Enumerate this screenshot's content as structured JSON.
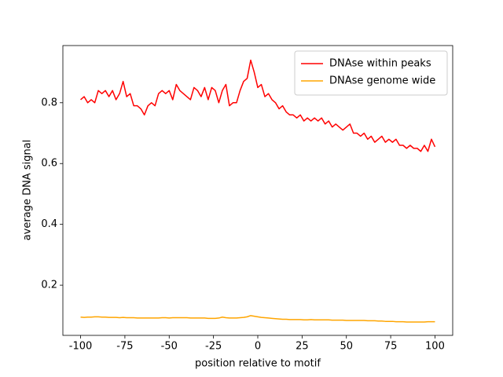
{
  "chart_data": {
    "type": "line",
    "xlabel": "position relative to motif",
    "ylabel": "average DNA signal",
    "x": [
      -100,
      -98,
      -96,
      -94,
      -92,
      -90,
      -88,
      -86,
      -84,
      -82,
      -80,
      -78,
      -76,
      -74,
      -72,
      -70,
      -68,
      -66,
      -64,
      -62,
      -60,
      -58,
      -56,
      -54,
      -52,
      -50,
      -48,
      -46,
      -44,
      -42,
      -40,
      -38,
      -36,
      -34,
      -32,
      -30,
      -28,
      -26,
      -24,
      -22,
      -20,
      -18,
      -16,
      -14,
      -12,
      -10,
      -8,
      -6,
      -4,
      -2,
      0,
      2,
      4,
      6,
      8,
      10,
      12,
      14,
      16,
      18,
      20,
      22,
      24,
      26,
      28,
      30,
      32,
      34,
      36,
      38,
      40,
      42,
      44,
      46,
      48,
      50,
      52,
      54,
      56,
      58,
      60,
      62,
      64,
      66,
      68,
      70,
      72,
      74,
      76,
      78,
      80,
      82,
      84,
      86,
      88,
      90,
      92,
      94,
      96,
      98,
      100
    ],
    "series": [
      {
        "name": "DNAse within peaks",
        "color": "#ff0000",
        "values": [
          0.81,
          0.82,
          0.8,
          0.81,
          0.8,
          0.84,
          0.83,
          0.84,
          0.82,
          0.84,
          0.81,
          0.83,
          0.87,
          0.82,
          0.83,
          0.79,
          0.79,
          0.78,
          0.76,
          0.79,
          0.8,
          0.79,
          0.83,
          0.84,
          0.83,
          0.84,
          0.81,
          0.86,
          0.84,
          0.83,
          0.82,
          0.81,
          0.85,
          0.84,
          0.82,
          0.85,
          0.81,
          0.85,
          0.84,
          0.8,
          0.84,
          0.86,
          0.79,
          0.8,
          0.8,
          0.84,
          0.87,
          0.88,
          0.94,
          0.9,
          0.85,
          0.86,
          0.82,
          0.83,
          0.81,
          0.8,
          0.78,
          0.79,
          0.77,
          0.76,
          0.76,
          0.75,
          0.76,
          0.74,
          0.75,
          0.74,
          0.75,
          0.74,
          0.75,
          0.73,
          0.74,
          0.72,
          0.73,
          0.72,
          0.71,
          0.72,
          0.73,
          0.7,
          0.7,
          0.69,
          0.7,
          0.68,
          0.69,
          0.67,
          0.68,
          0.69,
          0.67,
          0.68,
          0.67,
          0.68,
          0.66,
          0.66,
          0.65,
          0.66,
          0.65,
          0.65,
          0.64,
          0.66,
          0.64,
          0.68,
          0.655
        ]
      },
      {
        "name": "DNAse genome wide",
        "color": "#ffa500",
        "values": [
          0.095,
          0.094,
          0.095,
          0.095,
          0.096,
          0.096,
          0.095,
          0.095,
          0.094,
          0.094,
          0.094,
          0.093,
          0.094,
          0.093,
          0.093,
          0.093,
          0.092,
          0.092,
          0.092,
          0.092,
          0.092,
          0.092,
          0.092,
          0.093,
          0.093,
          0.092,
          0.093,
          0.093,
          0.093,
          0.093,
          0.093,
          0.092,
          0.092,
          0.092,
          0.092,
          0.092,
          0.091,
          0.091,
          0.091,
          0.092,
          0.095,
          0.093,
          0.092,
          0.092,
          0.092,
          0.093,
          0.094,
          0.096,
          0.1,
          0.098,
          0.096,
          0.094,
          0.093,
          0.092,
          0.091,
          0.09,
          0.089,
          0.088,
          0.088,
          0.087,
          0.087,
          0.087,
          0.087,
          0.086,
          0.086,
          0.087,
          0.086,
          0.086,
          0.086,
          0.086,
          0.086,
          0.085,
          0.085,
          0.085,
          0.085,
          0.084,
          0.084,
          0.084,
          0.084,
          0.084,
          0.084,
          0.083,
          0.083,
          0.083,
          0.082,
          0.082,
          0.081,
          0.081,
          0.081,
          0.08,
          0.08,
          0.08,
          0.079,
          0.079,
          0.079,
          0.079,
          0.079,
          0.079,
          0.08,
          0.08,
          0.08
        ]
      }
    ],
    "xlim": [
      -110,
      110
    ],
    "xticks": [
      -100,
      -75,
      -50,
      -25,
      0,
      25,
      50,
      75,
      100
    ],
    "ylim": [
      0.035,
      0.988
    ],
    "yticks": [
      0.2,
      0.4,
      0.6,
      0.8
    ],
    "grid": false,
    "legend": "upper right"
  }
}
